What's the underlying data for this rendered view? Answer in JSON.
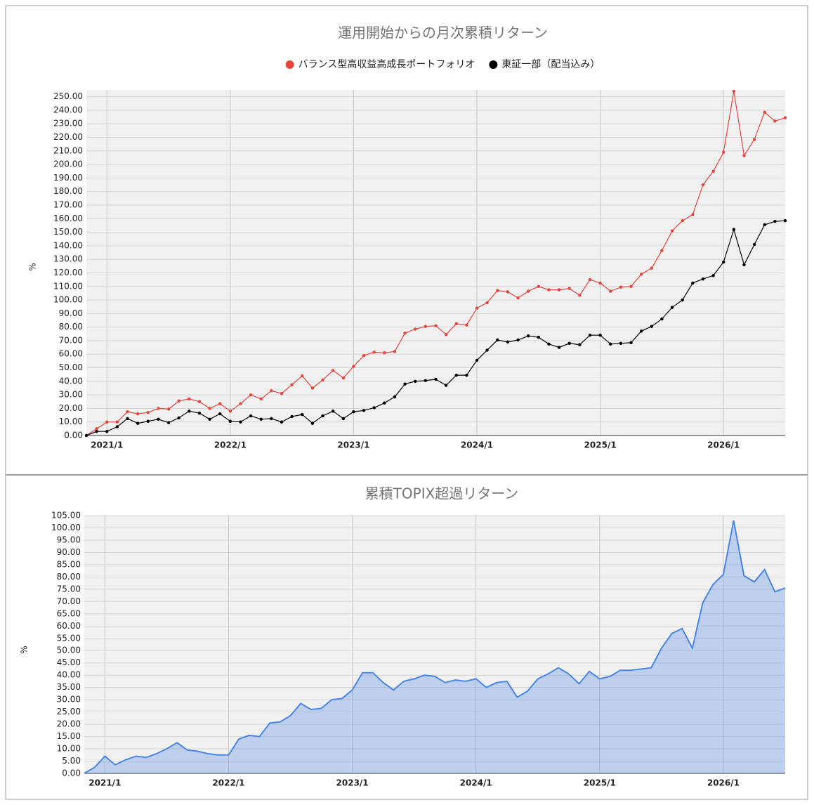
{
  "chart_data": [
    {
      "type": "line",
      "title": "運用開始からの月次累積リターン",
      "y_label": "%",
      "legend": "top",
      "grid": true,
      "categories": [
        null,
        null,
        "2021/1",
        null,
        null,
        null,
        null,
        null,
        null,
        null,
        null,
        null,
        null,
        null,
        "2022/1",
        null,
        null,
        null,
        null,
        null,
        null,
        null,
        null,
        null,
        null,
        null,
        "2023/1",
        null,
        null,
        null,
        null,
        null,
        null,
        null,
        null,
        null,
        null,
        null,
        "2024/1",
        null,
        null,
        null,
        null,
        null,
        null,
        null,
        null,
        null,
        null,
        null,
        "2025/1",
        null,
        null,
        null,
        null,
        null,
        null,
        null,
        null,
        null,
        null,
        null,
        "2026/1",
        null,
        null,
        null,
        null,
        null,
        null
      ],
      "series": [
        {
          "name": "バランス型高収益高成長ポートフォリオ",
          "color": "#e8453c",
          "values": [
            0,
            5,
            10,
            10,
            17.5,
            16,
            17,
            20,
            19.5,
            25.5,
            27,
            25,
            20,
            23.5,
            18,
            23.5,
            30,
            27,
            33,
            31,
            37.5,
            44,
            35,
            41,
            48,
            42.5,
            51,
            59,
            61.5,
            61,
            62,
            75.5,
            78.5,
            80.5,
            81,
            74.5,
            82.5,
            81.5,
            94,
            98,
            107,
            106,
            101.5,
            106.5,
            110,
            107.5,
            107.5,
            108.5,
            103.5,
            115,
            112.5,
            106.5,
            109.5,
            110,
            119,
            123.5,
            136.5,
            151,
            158.5,
            163,
            185,
            195,
            209,
            254,
            206.5,
            218.5,
            238.5,
            232,
            234.5
          ]
        },
        {
          "name": "東証一部（配当込み）",
          "color": "#000000",
          "values": [
            0,
            3,
            3,
            6.5,
            12.5,
            9,
            10.5,
            12,
            9.5,
            13,
            18,
            16.5,
            12,
            16,
            10.5,
            10,
            14.5,
            12,
            12.5,
            10,
            14,
            15.5,
            9,
            14.5,
            18,
            12.5,
            17.5,
            18.5,
            20.5,
            24,
            28.5,
            38,
            40,
            40.5,
            41.5,
            37,
            44.5,
            44.5,
            55.5,
            63,
            70.5,
            69,
            70.5,
            73.5,
            72.5,
            67.5,
            65,
            68,
            67,
            74,
            74,
            67.5,
            68,
            68.5,
            77,
            80.5,
            86,
            94.5,
            100,
            112.5,
            115.5,
            118,
            128,
            152,
            126,
            141,
            155.5,
            158,
            158.5
          ]
        }
      ],
      "ylim": [
        0,
        255
      ],
      "yticks": [
        {
          "value": 0,
          "label": "0.00"
        },
        {
          "value": 10,
          "label": "10.00"
        },
        {
          "value": 20,
          "label": "20.00"
        },
        {
          "value": 30,
          "label": "30.00"
        },
        {
          "value": 40,
          "label": "40.00"
        },
        {
          "value": 50,
          "label": "50.00"
        },
        {
          "value": 60,
          "label": "60.00"
        },
        {
          "value": 70,
          "label": "70.00"
        },
        {
          "value": 80,
          "label": "80.00"
        },
        {
          "value": 90,
          "label": "90.00"
        },
        {
          "value": 100,
          "label": "100.00"
        },
        {
          "value": 110,
          "label": "110.00"
        },
        {
          "value": 120,
          "label": "120.00"
        },
        {
          "value": 130,
          "label": "130.00"
        },
        {
          "value": 140,
          "label": "140.00"
        },
        {
          "value": 150,
          "label": "150.00"
        },
        {
          "value": 160,
          "label": "160.00"
        },
        {
          "value": 170,
          "label": "170.00"
        },
        {
          "value": 180,
          "label": "180.00"
        },
        {
          "value": 190,
          "label": "190.00"
        },
        {
          "value": 200,
          "label": "200.00"
        },
        {
          "value": 210,
          "label": "210.00"
        },
        {
          "value": 220,
          "label": "220.00"
        },
        {
          "value": 230,
          "label": "230.00"
        },
        {
          "value": 240,
          "label": "240.00"
        },
        {
          "value": 250,
          "label": "250.00"
        }
      ]
    },
    {
      "type": "area",
      "title": "累積TOPIX超過リターン",
      "y_label": "%",
      "grid": true,
      "color": "#4a86e8",
      "categories": [
        null,
        null,
        "2021/1",
        null,
        null,
        null,
        null,
        null,
        null,
        null,
        null,
        null,
        null,
        null,
        "2022/1",
        null,
        null,
        null,
        null,
        null,
        null,
        null,
        null,
        null,
        null,
        null,
        "2023/1",
        null,
        null,
        null,
        null,
        null,
        null,
        null,
        null,
        null,
        null,
        null,
        "2024/1",
        null,
        null,
        null,
        null,
        null,
        null,
        null,
        null,
        null,
        null,
        null,
        "2025/1",
        null,
        null,
        null,
        null,
        null,
        null,
        null,
        null,
        null,
        null,
        null,
        "2026/1",
        null,
        null,
        null,
        null,
        null,
        null
      ],
      "values": [
        0,
        2.5,
        7,
        3.5,
        5.5,
        7,
        6.5,
        8,
        10,
        12.5,
        9.5,
        9,
        8,
        7.5,
        7.5,
        14,
        15.5,
        15,
        20.5,
        21,
        23.5,
        28.5,
        26,
        26.5,
        30,
        30.5,
        34,
        41,
        41,
        37,
        34,
        37.5,
        38.5,
        40,
        39.5,
        37,
        38,
        37.5,
        38.5,
        35,
        37,
        37.5,
        31,
        33.5,
        38.5,
        40.5,
        43,
        40.5,
        36.5,
        41.5,
        38.5,
        39.5,
        42,
        42,
        42.5,
        43,
        51,
        57,
        59,
        51,
        69.5,
        77,
        81,
        103,
        80.5,
        78,
        83,
        74,
        75.5
      ],
      "ylim": [
        0,
        105
      ],
      "yticks": [
        {
          "value": 0,
          "label": "0.00"
        },
        {
          "value": 5,
          "label": "5.00"
        },
        {
          "value": 10,
          "label": "10.00"
        },
        {
          "value": 15,
          "label": "15.00"
        },
        {
          "value": 20,
          "label": "20.00"
        },
        {
          "value": 25,
          "label": "25.00"
        },
        {
          "value": 30,
          "label": "30.00"
        },
        {
          "value": 35,
          "label": "35.00"
        },
        {
          "value": 40,
          "label": "40.00"
        },
        {
          "value": 45,
          "label": "45.00"
        },
        {
          "value": 50,
          "label": "50.00"
        },
        {
          "value": 55,
          "label": "55.00"
        },
        {
          "value": 60,
          "label": "60.00"
        },
        {
          "value": 65,
          "label": "65.00"
        },
        {
          "value": 70,
          "label": "70.00"
        },
        {
          "value": 75,
          "label": "75.00"
        },
        {
          "value": 80,
          "label": "80.00"
        },
        {
          "value": 85,
          "label": "85.00"
        },
        {
          "value": 90,
          "label": "90.00"
        },
        {
          "value": 95,
          "label": "95.00"
        },
        {
          "value": 100,
          "label": "100.00"
        },
        {
          "value": 105,
          "label": "105.00"
        }
      ]
    }
  ]
}
